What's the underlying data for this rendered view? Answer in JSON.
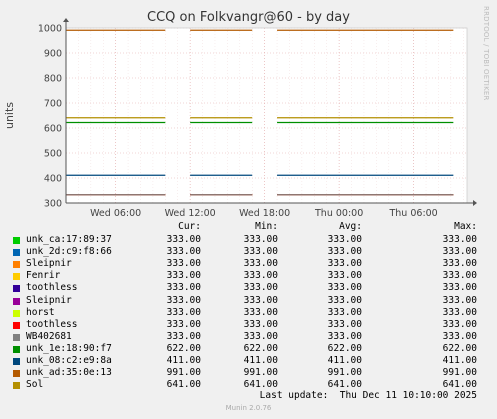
{
  "chart_data": {
    "type": "line",
    "title": "CCQ on Folkvangr@60 - by day",
    "ylabel": "units",
    "ylim": [
      300,
      1000
    ],
    "yticks": [
      300,
      400,
      500,
      600,
      700,
      800,
      900,
      1000
    ],
    "xticks": [
      "Wed 06:00",
      "Wed 12:00",
      "Wed 18:00",
      "Thu 00:00",
      "Thu 06:00"
    ],
    "grid": true,
    "gaps": [
      [
        "Wed 10:00",
        "Wed 12:00"
      ],
      [
        "Wed 17:00",
        "Wed 19:00"
      ]
    ],
    "series": [
      {
        "name": "unk_ca:17:89:37",
        "color": "#00cc00",
        "cur": "333.00",
        "min": "333.00",
        "avg": "333.00",
        "max": "333.00",
        "value": 333
      },
      {
        "name": "unk_2d:c9:f8:66",
        "color": "#0066b3",
        "cur": "333.00",
        "min": "333.00",
        "avg": "333.00",
        "max": "333.00",
        "value": 333
      },
      {
        "name": "Sleipnir",
        "color": "#ff8000",
        "cur": "333.00",
        "min": "333.00",
        "avg": "333.00",
        "max": "333.00",
        "value": 333
      },
      {
        "name": "Fenrir",
        "color": "#ffcc00",
        "cur": "333.00",
        "min": "333.00",
        "avg": "333.00",
        "max": "333.00",
        "value": 333
      },
      {
        "name": "toothless",
        "color": "#330099",
        "cur": "333.00",
        "min": "333.00",
        "avg": "333.00",
        "max": "333.00",
        "value": 333
      },
      {
        "name": "Sleipnir",
        "color": "#990099",
        "cur": "333.00",
        "min": "333.00",
        "avg": "333.00",
        "max": "333.00",
        "value": 333
      },
      {
        "name": "horst",
        "color": "#ccff00",
        "cur": "333.00",
        "min": "333.00",
        "avg": "333.00",
        "max": "333.00",
        "value": 333
      },
      {
        "name": "toothless",
        "color": "#ff0000",
        "cur": "333.00",
        "min": "333.00",
        "avg": "333.00",
        "max": "333.00",
        "value": 333
      },
      {
        "name": "WB402681",
        "color": "#808080",
        "cur": "333.00",
        "min": "333.00",
        "avg": "333.00",
        "max": "333.00",
        "value": 333
      },
      {
        "name": "unk_1e:18:90:f7",
        "color": "#008f00",
        "cur": "622.00",
        "min": "622.00",
        "avg": "622.00",
        "max": "622.00",
        "value": 622
      },
      {
        "name": "unk_08:c2:e9:8a",
        "color": "#00487d",
        "cur": "411.00",
        "min": "411.00",
        "avg": "411.00",
        "max": "411.00",
        "value": 411
      },
      {
        "name": "unk_ad:35:0e:13",
        "color": "#b35a00",
        "cur": "991.00",
        "min": "991.00",
        "avg": "991.00",
        "max": "991.00",
        "value": 991
      },
      {
        "name": "Sol",
        "color": "#b38f00",
        "cur": "641.00",
        "min": "641.00",
        "avg": "641.00",
        "max": "641.00",
        "value": 641
      }
    ]
  },
  "side_label": "RRDTOOL / TOBI OETIKER",
  "legend_headers": {
    "cur": "Cur:",
    "min": "Min:",
    "avg": "Avg:",
    "max": "Max:"
  },
  "last_update": "Last update:  Thu Dec 11 10:10:00 2025",
  "footer": "Munin 2.0.76"
}
